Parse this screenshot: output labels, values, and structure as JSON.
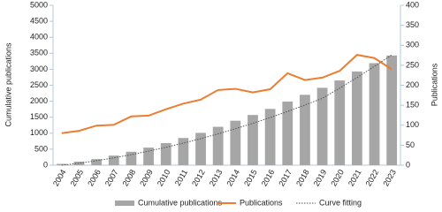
{
  "chart_data": {
    "type": "bar-line",
    "categories": [
      "2004",
      "2005",
      "2006",
      "2007",
      "2008",
      "2009",
      "2010",
      "2011",
      "2012",
      "2013",
      "2014",
      "2015",
      "2016",
      "2017",
      "2018",
      "2019",
      "2020",
      "2021",
      "2022",
      "2023"
    ],
    "y_label": "Cumulative publications",
    "y2_label": "Publications",
    "ylim": [
      0,
      5000
    ],
    "yticks": [
      0,
      500,
      1000,
      1500,
      2000,
      2500,
      3000,
      3500,
      4000,
      4500,
      5000
    ],
    "y2lim": [
      0,
      400
    ],
    "y2ticks": [
      0,
      50,
      100,
      150,
      200,
      250,
      300,
      350,
      400
    ],
    "series": [
      {
        "name": "Cumulative publications",
        "type": "bar",
        "color": "#a6a6a6",
        "values": [
          40,
          110,
          190,
          300,
          420,
          550,
          690,
          850,
          1010,
          1200,
          1390,
          1570,
          1760,
          1990,
          2200,
          2420,
          2650,
          2930,
          3190,
          3430
        ]
      },
      {
        "name": "Publications",
        "type": "line",
        "axis": "y2",
        "color": "#ed7d31",
        "values": [
          80,
          86,
          99,
          101,
          122,
          124,
          140,
          154,
          164,
          188,
          191,
          182,
          190,
          230,
          213,
          219,
          236,
          276,
          268,
          240
        ]
      },
      {
        "name": "Curve fitting",
        "type": "dotted",
        "color": "#555555",
        "values": [
          0,
          60,
          140,
          230,
          330,
          440,
          560,
          690,
          830,
          980,
          1140,
          1310,
          1490,
          1680,
          1880,
          2090,
          2410,
          2740,
          3090,
          3450
        ]
      }
    ]
  }
}
